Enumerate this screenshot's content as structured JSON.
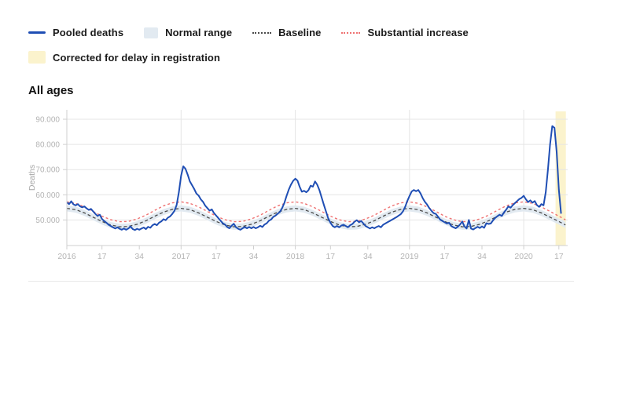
{
  "section_title": "All ages",
  "legend": {
    "row1": [
      {
        "label": "Pooled deaths",
        "swatch": "line",
        "color": "#1f4eb4"
      },
      {
        "label": "Normal range",
        "swatch": "box",
        "color": "#e2eaf1"
      },
      {
        "label": "Baseline",
        "swatch": "dotted",
        "color": "#4a4a4a"
      },
      {
        "label": "Substantial increase",
        "swatch": "dotted",
        "color": "#ee7272"
      }
    ],
    "row2": [
      {
        "label": "Corrected for delay in registration",
        "swatch": "box",
        "color": "#fbf3cd"
      }
    ]
  },
  "chart_data": {
    "type": "line",
    "title": "All ages",
    "xlabel": "",
    "ylabel": "Deaths",
    "x_unit": "ISO week, 2016 w1 - 2020 w18",
    "total_weeks": 228,
    "ylim_thousands": [
      40,
      92
    ],
    "yticks_thousands": [
      50,
      60,
      70,
      80,
      90
    ],
    "ytick_labels": [
      "50.000",
      "60.000",
      "70.000",
      "80.000",
      "90.000"
    ],
    "xticks": [
      {
        "week_index": 0,
        "label": "2016"
      },
      {
        "week_index": 16,
        "label": "17"
      },
      {
        "week_index": 33,
        "label": "34"
      },
      {
        "week_index": 52,
        "label": "2017"
      },
      {
        "week_index": 68,
        "label": "17"
      },
      {
        "week_index": 85,
        "label": "34"
      },
      {
        "week_index": 104,
        "label": "2018"
      },
      {
        "week_index": 120,
        "label": "17"
      },
      {
        "week_index": 137,
        "label": "34"
      },
      {
        "week_index": 156,
        "label": "2019"
      },
      {
        "week_index": 172,
        "label": "17"
      },
      {
        "week_index": 189,
        "label": "34"
      },
      {
        "week_index": 208,
        "label": "2020"
      },
      {
        "week_index": 224,
        "label": "17"
      }
    ],
    "year_gridline_week_indices": [
      52,
      104,
      156,
      208
    ],
    "grid": true,
    "legend_position": "top-left",
    "corrected_band_week_range": [
      222.5,
      227.2
    ],
    "colors": {
      "pooled_deaths": "#1f4eb4",
      "baseline": "#4a4a4a",
      "substantial_increase": "#ee7272",
      "normal_range_fill": "#e2eaf1",
      "corrected_band_fill": "#fbf3cd",
      "gridline": "#e5e5e5",
      "axis": "#cfcfcf",
      "tick_text": "#b4b4b4",
      "axis_title_text": "#a6a6a6"
    },
    "series": {
      "pooled_deaths": {
        "name": "Pooled deaths",
        "start_week_index": 0,
        "week_step": 1,
        "values_thousands": [
          57.0,
          56.3,
          57.4,
          56.2,
          55.8,
          56.3,
          55.4,
          55.0,
          55.4,
          54.6,
          54.0,
          54.4,
          53.4,
          52.4,
          51.6,
          52.1,
          50.4,
          49.6,
          48.9,
          48.1,
          47.6,
          47.1,
          46.6,
          47.1,
          46.5,
          46.1,
          46.6,
          46.1,
          46.6,
          47.4,
          46.4,
          46.0,
          46.5,
          46.1,
          46.6,
          47.0,
          46.4,
          47.3,
          46.9,
          47.9,
          48.4,
          47.9,
          48.9,
          49.4,
          50.3,
          49.9,
          50.9,
          51.4,
          52.4,
          53.6,
          56.0,
          61.0,
          67.5,
          71.3,
          70.3,
          68.0,
          65.3,
          63.8,
          62.3,
          60.5,
          59.7,
          58.2,
          57.2,
          55.7,
          54.7,
          53.7,
          54.2,
          52.7,
          51.7,
          50.7,
          49.7,
          48.7,
          48.2,
          47.2,
          46.7,
          47.7,
          48.5,
          47.1,
          46.5,
          46.1,
          46.7,
          47.2,
          46.7,
          47.2,
          46.7,
          47.2,
          46.7,
          47.1,
          47.7,
          47.2,
          48.2,
          48.7,
          49.7,
          50.2,
          51.2,
          51.7,
          52.5,
          53.2,
          54.7,
          56.7,
          59.5,
          62.0,
          64.0,
          65.5,
          66.4,
          65.6,
          63.2,
          61.2,
          61.6,
          61.0,
          61.8,
          63.6,
          63.2,
          65.3,
          64.0,
          61.8,
          58.9,
          56.0,
          53.3,
          50.6,
          48.9,
          47.6,
          47.1,
          47.6,
          47.1,
          47.8,
          48.1,
          47.6,
          47.1,
          47.9,
          48.4,
          49.3,
          49.9,
          49.1,
          49.6,
          48.6,
          47.6,
          47.1,
          46.6,
          47.1,
          46.7,
          47.2,
          47.6,
          47.1,
          48.1,
          48.6,
          49.1,
          49.6,
          50.1,
          50.6,
          51.1,
          51.7,
          52.3,
          53.4,
          55.2,
          57.5,
          59.5,
          61.3,
          61.9,
          61.4,
          61.9,
          60.6,
          58.7,
          57.2,
          56.1,
          54.7,
          53.6,
          52.7,
          52.4,
          51.2,
          50.1,
          49.6,
          49.1,
          48.6,
          48.9,
          47.6,
          47.1,
          46.7,
          47.3,
          48.2,
          49.4,
          47.4,
          46.6,
          50.0,
          46.6,
          46.2,
          46.8,
          47.3,
          46.8,
          47.4,
          46.9,
          48.7,
          48.4,
          48.6,
          49.8,
          50.8,
          51.5,
          52.1,
          51.6,
          53.0,
          54.1,
          55.4,
          54.9,
          55.9,
          56.7,
          57.5,
          58.3,
          58.8,
          59.6,
          58.2,
          57.1,
          57.8,
          56.9,
          57.5,
          55.9,
          55.2,
          56.3,
          55.8,
          61.0,
          70.0,
          80.0,
          87.3,
          86.6,
          77.0,
          62.0,
          52.5
        ]
      },
      "baseline": {
        "name": "Baseline",
        "start_week_index": 0,
        "week_step": 4,
        "values_thousands": [
          54.6,
          54.1,
          52.8,
          51.1,
          49.4,
          48.0,
          47.3,
          47.4,
          48.3,
          49.7,
          51.5,
          53.1,
          54.2,
          54.6,
          54.1,
          52.8,
          51.1,
          49.4,
          48.0,
          47.3,
          47.4,
          48.3,
          49.7,
          51.5,
          53.1,
          54.2,
          54.6,
          54.1,
          52.8,
          51.1,
          49.4,
          48.0,
          47.3,
          47.4,
          48.3,
          49.7,
          51.5,
          53.1,
          54.2,
          54.6,
          54.1,
          52.8,
          51.1,
          49.4,
          48.0,
          47.3,
          47.4,
          48.3,
          49.7,
          51.5,
          53.1,
          54.2,
          54.6,
          54.1,
          52.8,
          51.1,
          49.4,
          48.0
        ]
      },
      "substantial_increase": {
        "name": "Substantial increase",
        "start_week_index": 0,
        "week_step": 4,
        "values_thousands": [
          57.2,
          56.6,
          55.2,
          53.4,
          51.5,
          50.1,
          49.3,
          49.4,
          50.4,
          51.9,
          53.8,
          55.6,
          56.8,
          57.2,
          56.6,
          55.2,
          53.4,
          51.5,
          50.1,
          49.3,
          49.4,
          50.4,
          51.9,
          53.8,
          55.6,
          56.8,
          57.2,
          56.6,
          55.2,
          53.4,
          51.5,
          50.1,
          49.3,
          49.4,
          50.4,
          51.9,
          53.8,
          55.6,
          56.8,
          57.2,
          56.6,
          55.2,
          53.4,
          51.5,
          50.1,
          49.3,
          49.4,
          50.4,
          51.9,
          53.8,
          55.6,
          56.8,
          57.2,
          56.6,
          55.2,
          53.4,
          51.5,
          50.1
        ]
      },
      "normal_range": {
        "name": "Normal range",
        "around": "baseline",
        "halfwidth_thousands": 1.2
      }
    }
  }
}
